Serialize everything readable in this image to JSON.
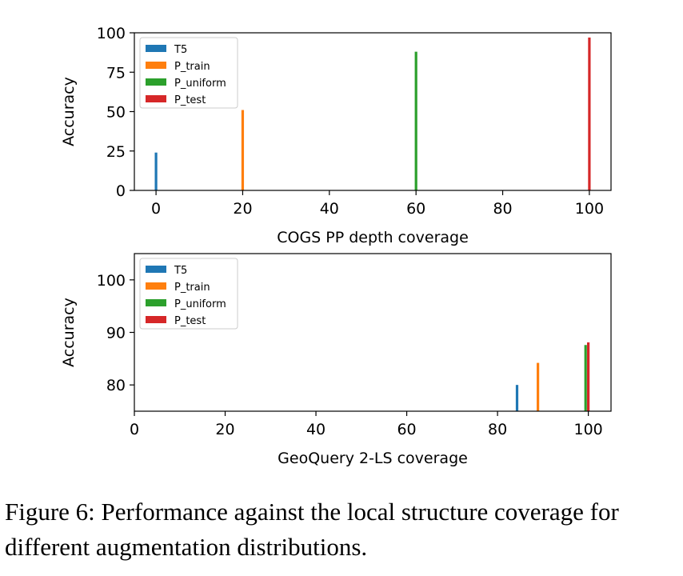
{
  "chart_data": [
    {
      "type": "bar",
      "xlabel": "COGS PP depth coverage",
      "ylabel": "Accuracy",
      "xlim": [
        -5,
        105
      ],
      "ylim": [
        0,
        100
      ],
      "xticks": [
        0,
        20,
        40,
        60,
        80,
        100
      ],
      "yticks": [
        0,
        25,
        50,
        75,
        100
      ],
      "legend_position": "top-left",
      "grid": false,
      "series": [
        {
          "name": "T5",
          "color": "#1f77b4",
          "points": [
            {
              "x": 0,
              "y": 24
            }
          ]
        },
        {
          "name": "P_train",
          "color": "#ff7f0e",
          "points": [
            {
              "x": 20,
              "y": 51
            }
          ]
        },
        {
          "name": "P_uniform",
          "color": "#2ca02c",
          "points": [
            {
              "x": 60,
              "y": 88
            }
          ]
        },
        {
          "name": "P_test",
          "color": "#d62728",
          "points": [
            {
              "x": 100,
              "y": 97
            }
          ]
        }
      ]
    },
    {
      "type": "bar",
      "xlabel": "GeoQuery 2-LS coverage",
      "ylabel": "Accuracy",
      "xlim": [
        0,
        105
      ],
      "ylim": [
        75,
        105
      ],
      "xticks": [
        0,
        20,
        40,
        60,
        80,
        100
      ],
      "yticks": [
        80,
        90,
        100
      ],
      "legend_position": "top-left",
      "grid": false,
      "series": [
        {
          "name": "T5",
          "color": "#1f77b4",
          "points": [
            {
              "x": 84.3,
              "y": 80
            }
          ]
        },
        {
          "name": "P_train",
          "color": "#ff7f0e",
          "points": [
            {
              "x": 88.9,
              "y": 84.2
            }
          ]
        },
        {
          "name": "P_uniform",
          "color": "#2ca02c",
          "points": [
            {
              "x": 99.4,
              "y": 87.6
            }
          ]
        },
        {
          "name": "P_test",
          "color": "#d62728",
          "points": [
            {
              "x": 100,
              "y": 88.1
            }
          ]
        }
      ]
    }
  ],
  "caption": "Figure 6: Performance against the local structure coverage for different augmentation distributions."
}
